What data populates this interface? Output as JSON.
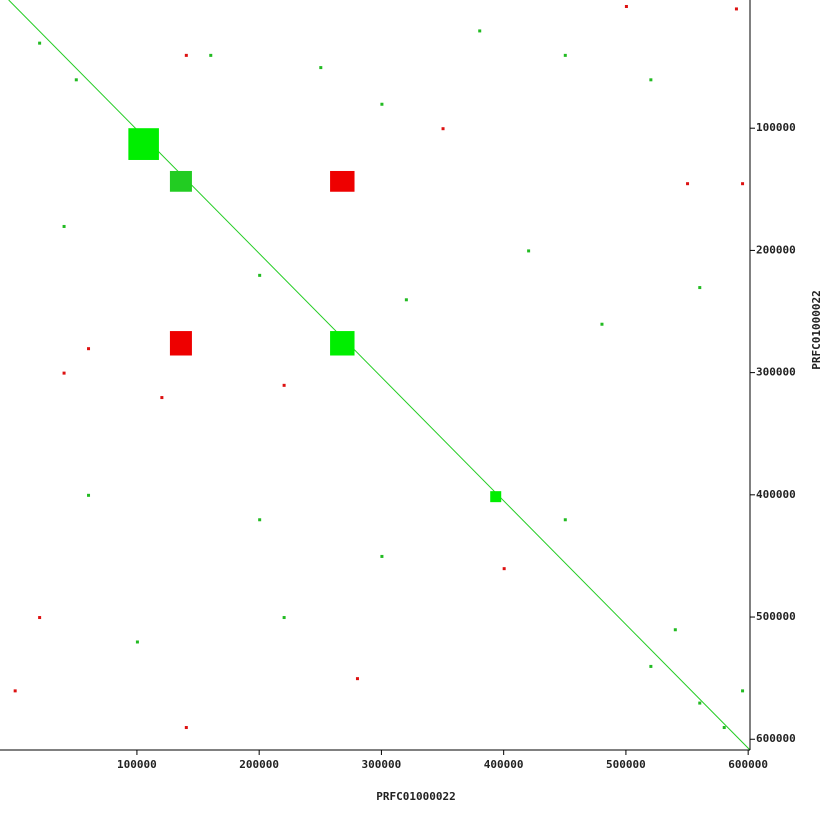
{
  "chart_data": {
    "type": "dotplot",
    "xlabel": "PRFC01000022",
    "ylabel": "PRFC01000022",
    "xlim": [
      -12000,
      601500
    ],
    "ylim": [
      -4900,
      608800
    ],
    "xticks": [
      100000,
      200000,
      300000,
      400000,
      500000,
      600000
    ],
    "yticks": [
      100000,
      200000,
      300000,
      400000,
      500000,
      600000
    ],
    "y_inverted": true,
    "lines": [
      {
        "color": "#22cc22",
        "x": [
          -4900,
          601500
        ],
        "y": [
          -4900,
          608800
        ]
      }
    ],
    "blocks": [
      {
        "color": "#00ee00",
        "x": [
          93000,
          118000
        ],
        "y": [
          100000,
          126000
        ]
      },
      {
        "color": "#22cc22",
        "x": [
          127000,
          145000
        ],
        "y": [
          135000,
          152000
        ]
      },
      {
        "color": "#ee0000",
        "x": [
          258000,
          278000
        ],
        "y": [
          135000,
          152000
        ]
      },
      {
        "color": "#ee0000",
        "x": [
          127000,
          145000
        ],
        "y": [
          266000,
          286000
        ]
      },
      {
        "color": "#00ee00",
        "x": [
          258000,
          278000
        ],
        "y": [
          266000,
          286000
        ]
      },
      {
        "color": "#00ee00",
        "x": [
          389000,
          398000
        ],
        "y": [
          397000,
          406000
        ]
      }
    ],
    "series": [
      {
        "color": "#22bb22",
        "x": [
          20000,
          50000,
          160000,
          250000,
          300000,
          380000,
          450000,
          520000,
          40000,
          200000,
          320000,
          420000,
          480000,
          560000,
          60000,
          200000,
          300000,
          450000,
          100000,
          220000,
          520000,
          560000,
          580000,
          540000,
          595000
        ],
        "values": [
          30000,
          60000,
          40000,
          50000,
          80000,
          20000,
          40000,
          60000,
          180000,
          220000,
          240000,
          200000,
          260000,
          230000,
          400000,
          420000,
          450000,
          420000,
          520000,
          500000,
          540000,
          570000,
          590000,
          510000,
          560000
        ]
      },
      {
        "color": "#dd1111",
        "x": [
          500000,
          590000,
          40000,
          120000,
          220000,
          60000,
          20000,
          0,
          280000,
          140000,
          400000,
          550000,
          595000,
          140000,
          350000
        ],
        "values": [
          0,
          2000,
          300000,
          320000,
          310000,
          280000,
          500000,
          560000,
          550000,
          590000,
          460000,
          145000,
          145000,
          40000,
          100000
        ]
      }
    ]
  }
}
